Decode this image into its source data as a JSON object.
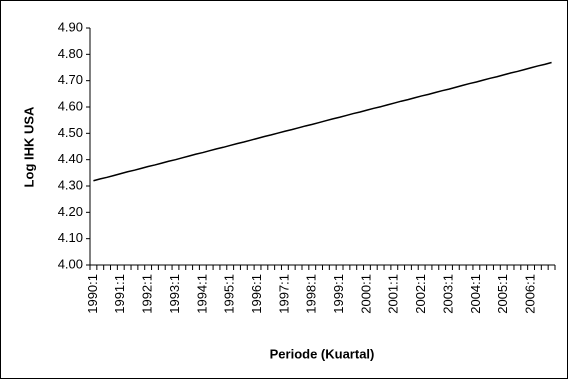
{
  "chart_data": {
    "type": "line",
    "y_label": "Log IHK USA",
    "x_label": "Periode (Kuartal)",
    "categories": [
      "1990:1",
      null,
      null,
      null,
      "1991:1",
      null,
      null,
      null,
      "1992:1",
      null,
      null,
      null,
      "1993:1",
      null,
      null,
      null,
      "1994:1",
      null,
      null,
      null,
      "1995:1",
      null,
      null,
      null,
      "1996:1",
      null,
      null,
      null,
      "1997:1",
      null,
      null,
      null,
      "1998:1",
      null,
      null,
      null,
      "1999:1",
      null,
      null,
      null,
      "2000:1",
      null,
      null,
      null,
      "2001:1",
      null,
      null,
      null,
      "2002:1",
      null,
      null,
      null,
      "2003:1",
      null,
      null,
      null,
      "2004:1",
      null,
      null,
      null,
      "2005:1",
      null,
      null,
      null,
      "2006:1",
      null,
      null,
      null
    ],
    "values": [
      4.32,
      4.327,
      4.333,
      4.34,
      4.347,
      4.354,
      4.36,
      4.367,
      4.374,
      4.38,
      4.387,
      4.394,
      4.4,
      4.407,
      4.414,
      4.421,
      4.427,
      4.434,
      4.441,
      4.447,
      4.454,
      4.461,
      4.467,
      4.474,
      4.481,
      4.488,
      4.494,
      4.501,
      4.508,
      4.514,
      4.521,
      4.528,
      4.534,
      4.541,
      4.548,
      4.555,
      4.561,
      4.568,
      4.575,
      4.581,
      4.588,
      4.595,
      4.601,
      4.608,
      4.615,
      4.622,
      4.628,
      4.635,
      4.642,
      4.648,
      4.655,
      4.662,
      4.668,
      4.675,
      4.682,
      4.689,
      4.695,
      4.702,
      4.709,
      4.715,
      4.722,
      4.729,
      4.735,
      4.742,
      4.749,
      4.756,
      4.762,
      4.769
    ],
    "color": "#000000",
    "ylim": [
      4.0,
      4.9
    ],
    "yticks": [
      {
        "value": 4.0,
        "label": "4.00"
      },
      {
        "value": 4.1,
        "label": "4.10"
      },
      {
        "value": 4.2,
        "label": "4.20"
      },
      {
        "value": 4.3,
        "label": "4.30"
      },
      {
        "value": 4.4,
        "label": "4.40"
      },
      {
        "value": 4.5,
        "label": "4.50"
      },
      {
        "value": 4.6,
        "label": "4.60"
      },
      {
        "value": 4.7,
        "label": "4.70"
      },
      {
        "value": 4.8,
        "label": "4.80"
      },
      {
        "value": 4.9,
        "label": "4.90"
      }
    ],
    "grid": false
  }
}
